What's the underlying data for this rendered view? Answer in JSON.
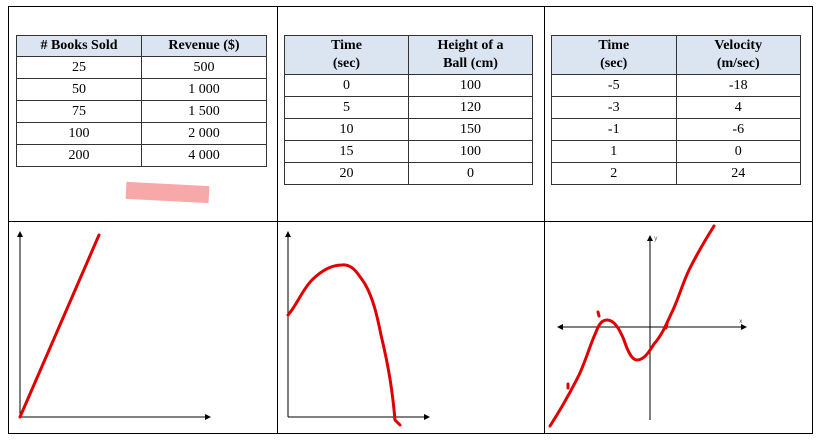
{
  "tables": [
    {
      "headers": [
        "# Books Sold",
        "Revenue ($)"
      ],
      "rows": [
        [
          "25",
          "500"
        ],
        [
          "50",
          "1 000"
        ],
        [
          "75",
          "1 500"
        ],
        [
          "100",
          "2 000"
        ],
        [
          "200",
          "4 000"
        ]
      ]
    },
    {
      "headers": [
        [
          "Time",
          "(sec)"
        ],
        [
          "Height of a",
          "Ball (cm)"
        ]
      ],
      "rows": [
        [
          "0",
          "100"
        ],
        [
          "5",
          "120"
        ],
        [
          "10",
          "150"
        ],
        [
          "15",
          "100"
        ],
        [
          "20",
          "0"
        ]
      ]
    },
    {
      "headers": [
        [
          "Time",
          "(sec)"
        ],
        [
          "Velocity",
          "(m/sec)"
        ]
      ],
      "rows": [
        [
          "-5",
          "-18"
        ],
        [
          "-3",
          "4"
        ],
        [
          "-1",
          "-6"
        ],
        [
          "1",
          "0"
        ],
        [
          "2",
          "24"
        ]
      ]
    }
  ],
  "graphs": {
    "axis_labels": {
      "y": "y",
      "x": "x"
    },
    "ink_color": "#e00000",
    "highlight_color": "#f7a3a3"
  }
}
